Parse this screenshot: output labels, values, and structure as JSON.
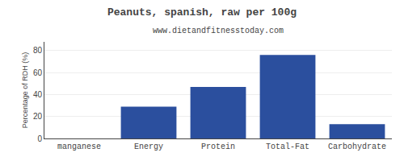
{
  "chart_data": {
    "type": "bar",
    "title": "Peanuts, spanish, raw per 100g",
    "subtitle": "www.dietandfitnesstoday.com",
    "categories": [
      "manganese",
      "Energy",
      "Protein",
      "Total-Fat",
      "Carbohydrate"
    ],
    "values": [
      0,
      29,
      47,
      76,
      13
    ],
    "color": "#2b4f9e",
    "ylabel": "Percentage of RDH (%)",
    "ylim": [
      0,
      88
    ],
    "yticks": [
      0,
      20,
      40,
      60,
      80
    ],
    "grid": true
  }
}
